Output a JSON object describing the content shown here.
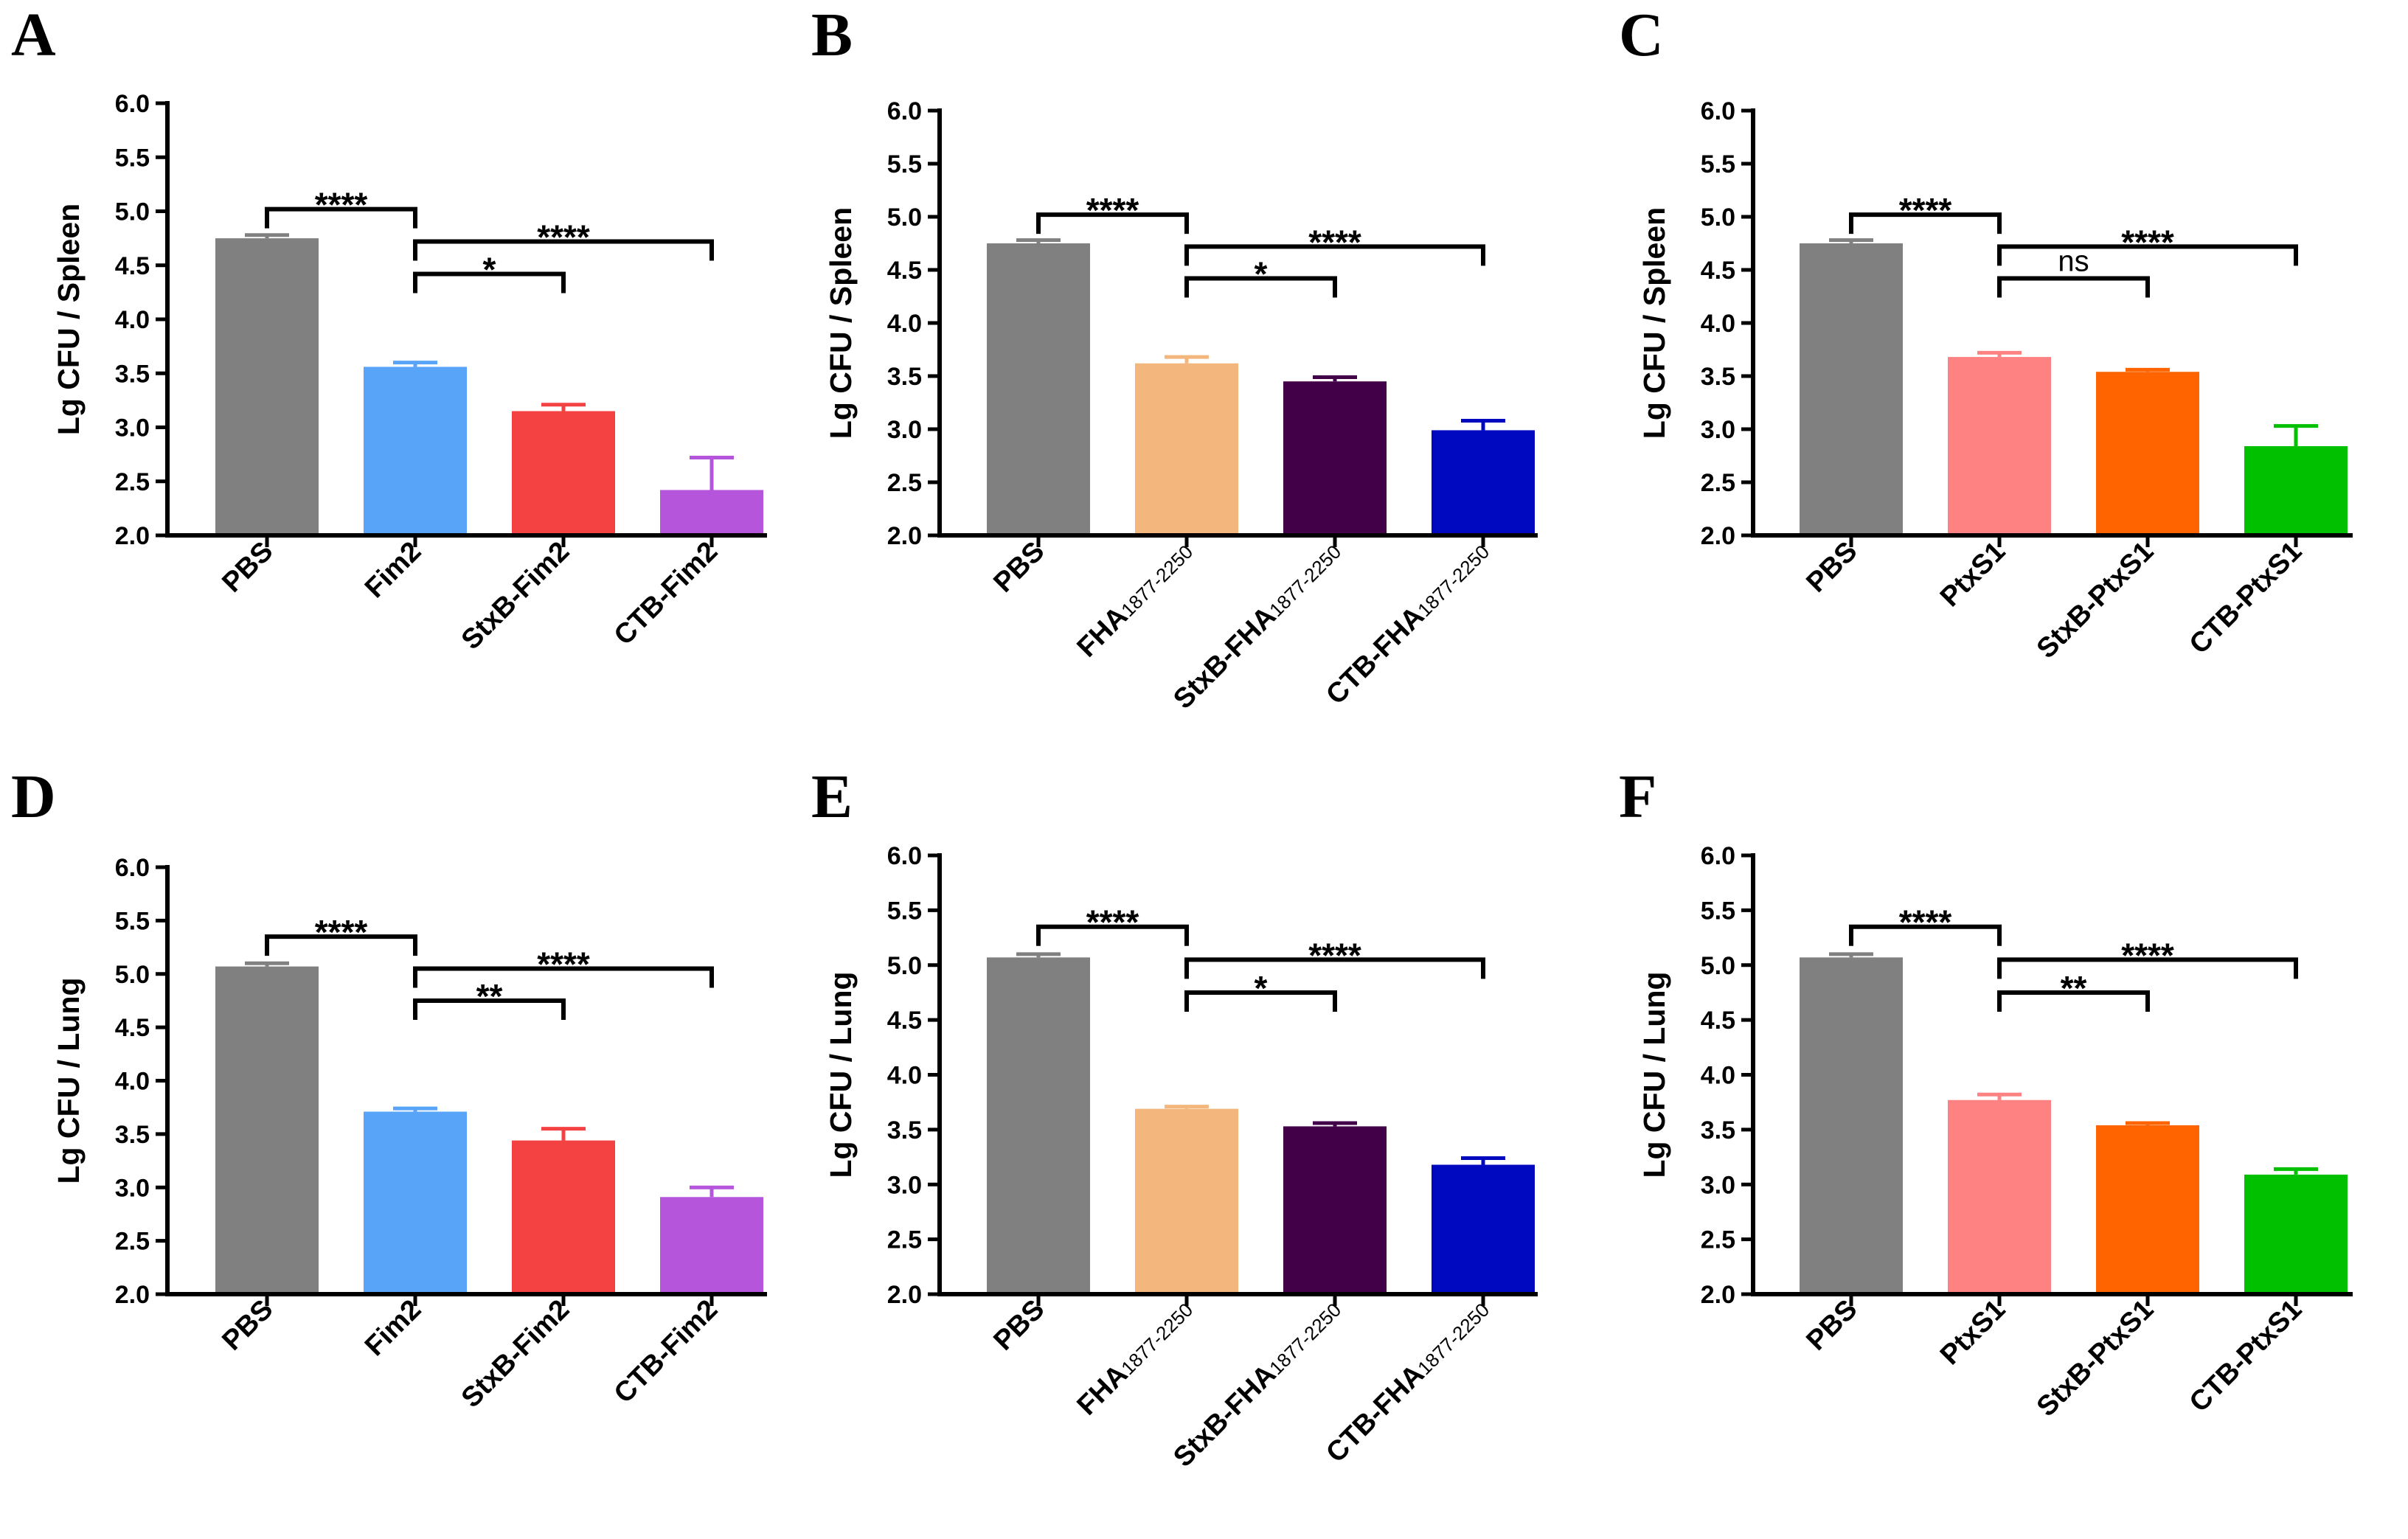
{
  "chart_data": [
    {
      "panel": "A",
      "type": "bar",
      "ylabel": "Lg CFU / Spleen",
      "ylim": [
        2.0,
        6.0
      ],
      "yticks": [
        "2.0",
        "2.5",
        "3.0",
        "3.5",
        "4.0",
        "4.5",
        "5.0",
        "5.5",
        "6.0"
      ],
      "categories": [
        {
          "main": "PBS",
          "sub": ""
        },
        {
          "main": "Fim2",
          "sub": ""
        },
        {
          "main": "StxB-Fim2",
          "sub": ""
        },
        {
          "main": "CTB-Fim2",
          "sub": ""
        }
      ],
      "values": [
        4.75,
        3.56,
        3.15,
        2.42
      ],
      "errors": [
        0.03,
        0.04,
        0.06,
        0.3
      ],
      "colors": [
        "#808080",
        "#58a4f8",
        "#f44242",
        "#b455dc"
      ],
      "comparisons": [
        {
          "from": 0,
          "to": 1,
          "label": "****",
          "y": 5.02
        },
        {
          "from": 1,
          "to": 3,
          "label": "****",
          "y": 4.72
        },
        {
          "from": 1,
          "to": 2,
          "label": "*",
          "y": 4.42
        }
      ]
    },
    {
      "panel": "B",
      "type": "bar",
      "ylabel": "Lg CFU / Spleen",
      "ylim": [
        2.0,
        6.0
      ],
      "yticks": [
        "2.0",
        "2.5",
        "3.0",
        "3.5",
        "4.0",
        "4.5",
        "5.0",
        "5.5",
        "6.0"
      ],
      "categories": [
        {
          "main": "PBS",
          "sub": ""
        },
        {
          "main": "FHA",
          "sub": "1877-2250"
        },
        {
          "main": "StxB-FHA",
          "sub": "1877-2250"
        },
        {
          "main": "CTB-FHA",
          "sub": "1877-2250"
        }
      ],
      "values": [
        4.75,
        3.62,
        3.45,
        2.99
      ],
      "errors": [
        0.03,
        0.06,
        0.04,
        0.09
      ],
      "colors": [
        "#808080",
        "#f3b77e",
        "#420049",
        "#0008c0"
      ],
      "comparisons": [
        {
          "from": 0,
          "to": 1,
          "label": "****",
          "y": 5.02
        },
        {
          "from": 1,
          "to": 3,
          "label": "****",
          "y": 4.72
        },
        {
          "from": 1,
          "to": 2,
          "label": "*",
          "y": 4.42
        }
      ]
    },
    {
      "panel": "C",
      "type": "bar",
      "ylabel": "Lg CFU / Spleen",
      "ylim": [
        2.0,
        6.0
      ],
      "yticks": [
        "2.0",
        "2.5",
        "3.0",
        "3.5",
        "4.0",
        "4.5",
        "5.0",
        "5.5",
        "6.0"
      ],
      "categories": [
        {
          "main": "PBS",
          "sub": ""
        },
        {
          "main": "PtxS1",
          "sub": ""
        },
        {
          "main": "StxB-PtxS1",
          "sub": ""
        },
        {
          "main": "CTB-PtxS1",
          "sub": ""
        }
      ],
      "values": [
        4.75,
        3.68,
        3.54,
        2.84
      ],
      "errors": [
        0.03,
        0.04,
        0.02,
        0.19
      ],
      "colors": [
        "#808080",
        "#ff8282",
        "#ff6400",
        "#00c000"
      ],
      "comparisons": [
        {
          "from": 0,
          "to": 1,
          "label": "****",
          "y": 5.02
        },
        {
          "from": 1,
          "to": 3,
          "label": "****",
          "y": 4.72
        },
        {
          "from": 1,
          "to": 2,
          "label": "ns",
          "y": 4.42
        }
      ]
    },
    {
      "panel": "D",
      "type": "bar",
      "ylabel": "Lg CFU / Lung",
      "ylim": [
        2.0,
        6.0
      ],
      "yticks": [
        "2.0",
        "2.5",
        "3.0",
        "3.5",
        "4.0",
        "4.5",
        "5.0",
        "5.5",
        "6.0"
      ],
      "categories": [
        {
          "main": "PBS",
          "sub": ""
        },
        {
          "main": "Fim2",
          "sub": ""
        },
        {
          "main": "StxB-Fim2",
          "sub": ""
        },
        {
          "main": "CTB-Fim2",
          "sub": ""
        }
      ],
      "values": [
        5.07,
        3.71,
        3.44,
        2.91
      ],
      "errors": [
        0.03,
        0.03,
        0.11,
        0.09
      ],
      "colors": [
        "#808080",
        "#58a4f8",
        "#f44242",
        "#b455dc"
      ],
      "comparisons": [
        {
          "from": 0,
          "to": 1,
          "label": "****",
          "y": 5.35
        },
        {
          "from": 1,
          "to": 3,
          "label": "****",
          "y": 5.05
        },
        {
          "from": 1,
          "to": 2,
          "label": "**",
          "y": 4.75
        }
      ]
    },
    {
      "panel": "E",
      "type": "bar",
      "ylabel": "Lg CFU / Lung",
      "ylim": [
        2.0,
        6.0
      ],
      "yticks": [
        "2.0",
        "2.5",
        "3.0",
        "3.5",
        "4.0",
        "4.5",
        "5.0",
        "5.5",
        "6.0"
      ],
      "categories": [
        {
          "main": "PBS",
          "sub": ""
        },
        {
          "main": "FHA",
          "sub": "1877-2250"
        },
        {
          "main": "StxB-FHA",
          "sub": "1877-2250"
        },
        {
          "main": "CTB-FHA",
          "sub": "1877-2250"
        }
      ],
      "values": [
        5.07,
        3.69,
        3.53,
        3.18
      ],
      "errors": [
        0.03,
        0.02,
        0.03,
        0.06
      ],
      "colors": [
        "#808080",
        "#f3b77e",
        "#420049",
        "#0008c0"
      ],
      "comparisons": [
        {
          "from": 0,
          "to": 1,
          "label": "****",
          "y": 5.35
        },
        {
          "from": 1,
          "to": 3,
          "label": "****",
          "y": 5.05
        },
        {
          "from": 1,
          "to": 2,
          "label": "*",
          "y": 4.75
        }
      ]
    },
    {
      "panel": "F",
      "type": "bar",
      "ylabel": "Lg CFU / Lung",
      "ylim": [
        2.0,
        6.0
      ],
      "yticks": [
        "2.0",
        "2.5",
        "3.0",
        "3.5",
        "4.0",
        "4.5",
        "5.0",
        "5.5",
        "6.0"
      ],
      "categories": [
        {
          "main": "PBS",
          "sub": ""
        },
        {
          "main": "PtxS1",
          "sub": ""
        },
        {
          "main": "StxB-PtxS1",
          "sub": ""
        },
        {
          "main": "CTB-PtxS1",
          "sub": ""
        }
      ],
      "values": [
        5.07,
        3.77,
        3.54,
        3.09
      ],
      "errors": [
        0.03,
        0.05,
        0.02,
        0.05
      ],
      "colors": [
        "#808080",
        "#ff8282",
        "#ff6400",
        "#00c000"
      ],
      "comparisons": [
        {
          "from": 0,
          "to": 1,
          "label": "****",
          "y": 5.35
        },
        {
          "from": 1,
          "to": 3,
          "label": "****",
          "y": 5.05
        },
        {
          "from": 1,
          "to": 2,
          "label": "**",
          "y": 4.75
        }
      ]
    }
  ]
}
